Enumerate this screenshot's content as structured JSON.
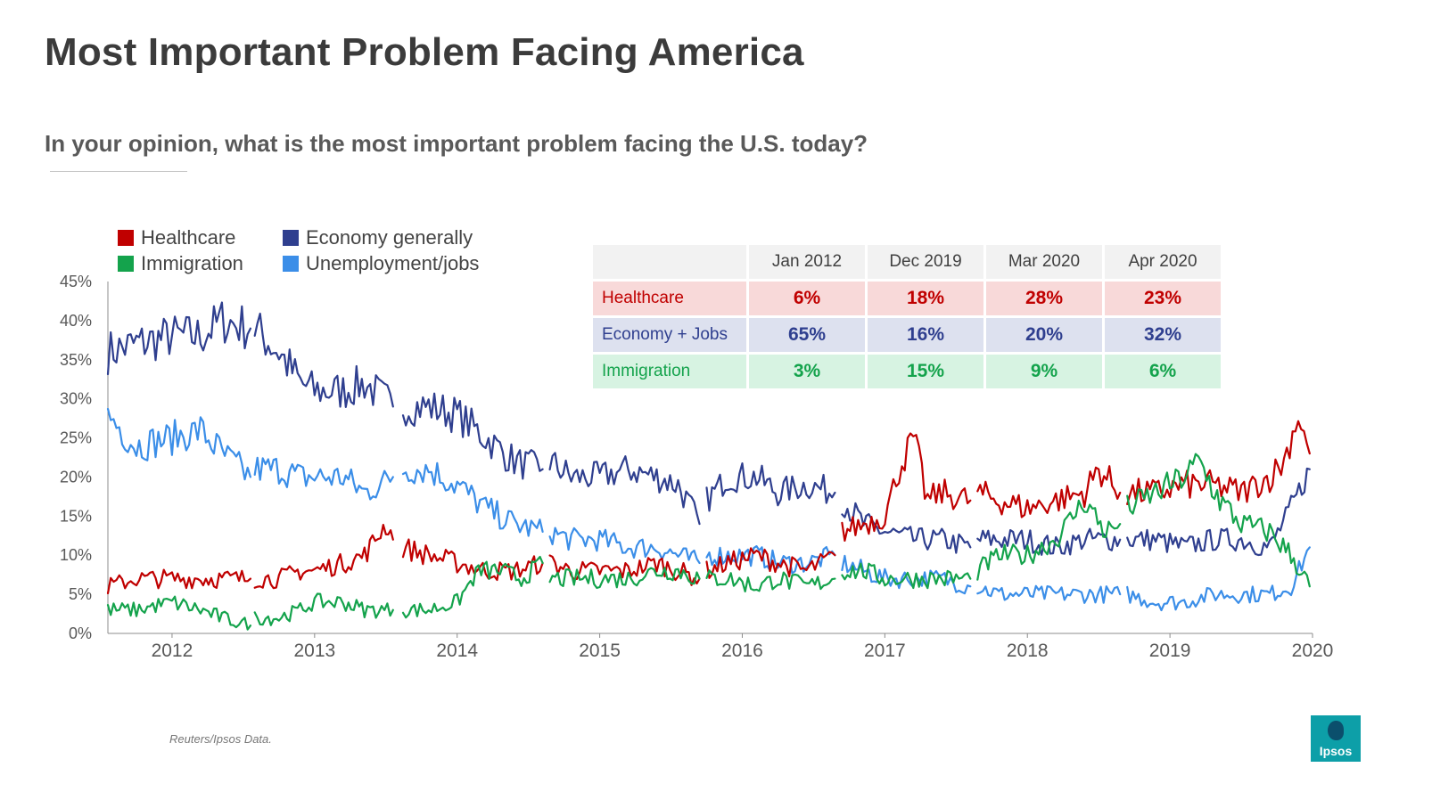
{
  "page": {
    "title": "Most Important Problem Facing America",
    "subtitle": "In your opinion, what is the most important problem facing the U.S. today?",
    "source": "Reuters/Ipsos Data.",
    "logo_text": "Ipsos"
  },
  "legend": [
    {
      "label": "Healthcare",
      "color": "#c00000"
    },
    {
      "label": "Immigration",
      "color": "#14a34c"
    },
    {
      "label": "Economy generally",
      "color": "#2f3f8f"
    },
    {
      "label": "Unemployment/jobs",
      "color": "#3b8ee8"
    }
  ],
  "summary_table": {
    "columns": [
      "Jan 2012",
      "Dec 2019",
      "Mar 2020",
      "Apr 2020"
    ],
    "rows": [
      {
        "label": "Healthcare",
        "values": [
          "6%",
          "18%",
          "28%",
          "23%"
        ]
      },
      {
        "label": "Economy + Jobs",
        "values": [
          "65%",
          "16%",
          "20%",
          "32%"
        ]
      },
      {
        "label": "Immigration",
        "values": [
          "3%",
          "15%",
          "9%",
          "6%"
        ]
      }
    ]
  },
  "chart_data": {
    "type": "line",
    "title": "Most Important Problem Facing America",
    "xlabel": "",
    "ylabel": "",
    "xlim": [
      2011.55,
      2020.0
    ],
    "ylim": [
      0,
      45
    ],
    "x_ticks": [
      2012,
      2013,
      2014,
      2015,
      2016,
      2017,
      2018,
      2019,
      2020
    ],
    "x_tick_labels": [
      "2012",
      "2013",
      "2014",
      "2015",
      "2016",
      "2017",
      "2018",
      "2019",
      "2020"
    ],
    "y_ticks": [
      0,
      5,
      10,
      15,
      20,
      25,
      30,
      35,
      40,
      45
    ],
    "y_tick_labels": [
      "0%",
      "5%",
      "10%",
      "15%",
      "20%",
      "25%",
      "30%",
      "35%",
      "40%",
      "45%"
    ],
    "grid": false,
    "legend_position": "top-left",
    "noise_amplitude": 1.4,
    "series": [
      {
        "name": "Economy generally",
        "color": "#2f3f8f",
        "segments": [
          {
            "x": [
              2011.55,
              2011.75,
              2012.0,
              2012.2,
              2012.35,
              2012.55
            ],
            "y": [
              36,
              37,
              38,
              38,
              40,
              39
            ]
          },
          {
            "x": [
              2012.58,
              2012.75,
              2012.9,
              2013.0,
              2013.2,
              2013.35,
              2013.55
            ],
            "y": [
              39,
              36,
              32,
              31,
              31,
              32,
              29
            ]
          },
          {
            "x": [
              2013.62,
              2013.8,
              2014.0,
              2014.2,
              2014.4,
              2014.6
            ],
            "y": [
              29,
              29,
              28,
              25,
              22,
              21
            ]
          },
          {
            "x": [
              2014.65,
              2014.8,
              2015.0,
              2015.2,
              2015.4,
              2015.55,
              2015.7
            ],
            "y": [
              22,
              20,
              20,
              21,
              20,
              19,
              14
            ]
          },
          {
            "x": [
              2015.75,
              2015.9,
              2016.1,
              2016.25,
              2016.45,
              2016.65
            ],
            "y": [
              17,
              20,
              20,
              18,
              19,
              18
            ]
          },
          {
            "x": [
              2016.7,
              2016.85,
              2017.0,
              2017.2,
              2017.4,
              2017.6
            ],
            "y": [
              17,
              14,
              13,
              12,
              12,
              11
            ]
          },
          {
            "x": [
              2017.65,
              2017.8,
              2018.0,
              2018.2,
              2018.4,
              2018.65
            ],
            "y": [
              12,
              12,
              12,
              11,
              12,
              12
            ]
          },
          {
            "x": [
              2018.7,
              2018.9,
              2019.1,
              2019.3,
              2019.5,
              2019.7,
              2019.85,
              2019.98
            ],
            "y": [
              12,
              12,
              11,
              12,
              12,
              11,
              16,
              21
            ]
          }
        ]
      },
      {
        "name": "Unemployment/jobs",
        "color": "#3b8ee8",
        "segments": [
          {
            "x": [
              2011.55,
              2011.75,
              2012.0,
              2012.2,
              2012.35,
              2012.55
            ],
            "y": [
              28,
              24,
              25,
              26,
              23,
              20
            ]
          },
          {
            "x": [
              2012.58,
              2012.75,
              2012.9,
              2013.0,
              2013.2,
              2013.35,
              2013.55
            ],
            "y": [
              21,
              21,
              20,
              20,
              20,
              18,
              20
            ]
          },
          {
            "x": [
              2013.62,
              2013.8,
              2014.0,
              2014.2,
              2014.4,
              2014.6
            ],
            "y": [
              21,
              21,
              19,
              16,
              14,
              13
            ]
          },
          {
            "x": [
              2014.65,
              2014.8,
              2015.0,
              2015.2,
              2015.4,
              2015.55,
              2015.7
            ],
            "y": [
              13,
              12,
              12,
              11,
              11,
              10,
              9
            ]
          },
          {
            "x": [
              2015.75,
              2015.9,
              2016.1,
              2016.25,
              2016.45,
              2016.65
            ],
            "y": [
              10,
              10,
              10,
              9,
              9,
              10
            ]
          },
          {
            "x": [
              2016.7,
              2016.85,
              2017.0,
              2017.2,
              2017.4,
              2017.6
            ],
            "y": [
              9,
              8,
              7,
              7,
              7,
              6
            ]
          },
          {
            "x": [
              2017.65,
              2017.8,
              2018.0,
              2018.2,
              2018.4,
              2018.65
            ],
            "y": [
              6,
              5,
              5,
              5,
              5,
              5
            ]
          },
          {
            "x": [
              2018.7,
              2018.9,
              2019.1,
              2019.3,
              2019.5,
              2019.7,
              2019.85,
              2019.98
            ],
            "y": [
              5,
              4,
              4,
              5,
              5,
              5,
              6,
              11
            ]
          }
        ]
      },
      {
        "name": "Healthcare",
        "color": "#c00000",
        "segments": [
          {
            "x": [
              2011.55,
              2011.75,
              2012.0,
              2012.2,
              2012.35,
              2012.55
            ],
            "y": [
              6,
              7,
              7,
              7,
              7,
              7
            ]
          },
          {
            "x": [
              2012.58,
              2012.75,
              2012.9,
              2013.0,
              2013.2,
              2013.35,
              2013.5,
              2013.55
            ],
            "y": [
              7,
              7,
              8,
              8,
              9,
              10,
              14,
              12
            ]
          },
          {
            "x": [
              2013.62,
              2013.8,
              2014.0,
              2014.2,
              2014.4,
              2014.6
            ],
            "y": [
              11,
              10,
              9,
              8,
              8,
              9
            ]
          },
          {
            "x": [
              2014.65,
              2014.8,
              2015.0,
              2015.2,
              2015.4,
              2015.55,
              2015.7
            ],
            "y": [
              9,
              8,
              8,
              8,
              9,
              8,
              7
            ]
          },
          {
            "x": [
              2015.75,
              2015.9,
              2016.1,
              2016.25,
              2016.45,
              2016.65
            ],
            "y": [
              8,
              9,
              10,
              9,
              8,
              10
            ]
          },
          {
            "x": [
              2016.7,
              2016.85,
              2017.0,
              2017.1,
              2017.2,
              2017.3,
              2017.4,
              2017.6
            ],
            "y": [
              13,
              14,
              15,
              21,
              25,
              17,
              18,
              17
            ]
          },
          {
            "x": [
              2017.65,
              2017.8,
              2018.0,
              2018.2,
              2018.4,
              2018.5,
              2018.65
            ],
            "y": [
              18,
              17,
              16,
              17,
              18,
              21,
              18
            ]
          },
          {
            "x": [
              2018.7,
              2018.9,
              2019.1,
              2019.3,
              2019.5,
              2019.7,
              2019.8,
              2019.9,
              2019.98
            ],
            "y": [
              18,
              18,
              19,
              19,
              18,
              20,
              22,
              28,
              23
            ]
          }
        ]
      },
      {
        "name": "Immigration",
        "color": "#14a34c",
        "segments": [
          {
            "x": [
              2011.55,
              2011.75,
              2012.0,
              2012.2,
              2012.35,
              2012.55
            ],
            "y": [
              3,
              3,
              4,
              3,
              2,
              1
            ]
          },
          {
            "x": [
              2012.58,
              2012.75,
              2012.9,
              2013.0,
              2013.2,
              2013.35,
              2013.55
            ],
            "y": [
              2,
              2,
              3,
              4,
              4,
              3,
              3
            ]
          },
          {
            "x": [
              2013.62,
              2013.8,
              2014.0,
              2014.15,
              2014.3,
              2014.45,
              2014.6
            ],
            "y": [
              3,
              3,
              4,
              8,
              8,
              7,
              9
            ]
          },
          {
            "x": [
              2014.65,
              2014.8,
              2015.0,
              2015.2,
              2015.4,
              2015.55,
              2015.7
            ],
            "y": [
              7,
              7,
              7,
              7,
              8,
              8,
              7
            ]
          },
          {
            "x": [
              2015.75,
              2015.9,
              2016.1,
              2016.25,
              2016.45,
              2016.65
            ],
            "y": [
              7,
              7,
              6,
              7,
              6,
              7
            ]
          },
          {
            "x": [
              2016.7,
              2016.85,
              2017.0,
              2017.2,
              2017.4,
              2017.6
            ],
            "y": [
              8,
              8,
              7,
              7,
              7,
              7
            ]
          },
          {
            "x": [
              2017.65,
              2017.8,
              2018.0,
              2018.2,
              2018.4,
              2018.55,
              2018.65
            ],
            "y": [
              8,
              10,
              10,
              12,
              17,
              13,
              14
            ]
          },
          {
            "x": [
              2018.7,
              2018.9,
              2019.1,
              2019.2,
              2019.35,
              2019.5,
              2019.7,
              2019.85,
              2019.98
            ],
            "y": [
              16,
              18,
              20,
              22,
              17,
              14,
              13,
              10,
              6
            ]
          }
        ]
      }
    ]
  }
}
